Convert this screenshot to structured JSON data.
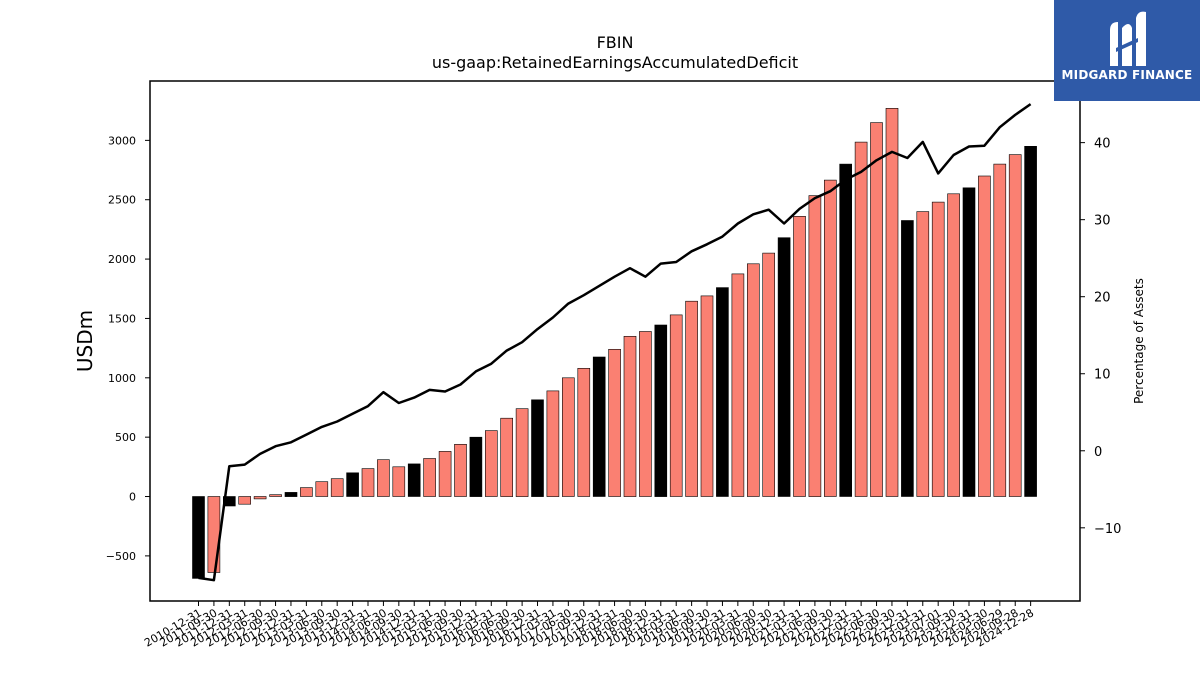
{
  "brand": {
    "name": "MIDGARD FINANCE",
    "bg_color": "#2f5aa8",
    "icon": "midgard-m-icon"
  },
  "chart_data": {
    "type": "bar",
    "title": "FBIN",
    "subtitle": "us-gaap:RetainedEarningsAccumulatedDeficit",
    "ylabel": "USDm",
    "y2label": "Percentage of Assets",
    "ylim": [
      -880,
      3500
    ],
    "y2lim": [
      -19.5,
      48
    ],
    "yticks": [
      -500,
      0,
      500,
      1000,
      1500,
      2000,
      2500,
      3000
    ],
    "y2ticks": [
      -10,
      0,
      10,
      20,
      30,
      40
    ],
    "colors": {
      "annual": "#000000",
      "quarterly": "#fa8072",
      "line": "#000000"
    },
    "legend": "none",
    "grid": false,
    "categories": [
      "2010-12-31",
      "2011-09-30",
      "2011-12-31",
      "2012-03-31",
      "2012-06-30",
      "2012-09-30",
      "2012-12-31",
      "2013-03-31",
      "2013-06-30",
      "2013-09-30",
      "2013-12-31",
      "2014-03-31",
      "2014-06-30",
      "2014-09-30",
      "2014-12-31",
      "2015-03-31",
      "2015-06-30",
      "2015-09-30",
      "2015-12-31",
      "2016-03-31",
      "2016-06-30",
      "2016-09-30",
      "2016-12-31",
      "2017-03-31",
      "2017-06-30",
      "2017-09-30",
      "2017-12-31",
      "2018-03-31",
      "2018-06-30",
      "2018-09-30",
      "2018-12-31",
      "2019-03-31",
      "2019-06-30",
      "2019-09-30",
      "2019-12-31",
      "2020-03-31",
      "2020-06-30",
      "2020-09-30",
      "2020-12-31",
      "2021-03-31",
      "2021-06-30",
      "2021-09-30",
      "2021-12-31",
      "2022-03-31",
      "2022-06-30",
      "2022-09-30",
      "2022-12-31",
      "2023-03-31",
      "2023-07-01",
      "2023-09-30",
      "2023-12-31",
      "2024-03-30",
      "2024-06-29",
      "2024-09-28",
      "2024-12-28"
    ],
    "tick_labels": [
      "2010-12-31",
      "2011-09-30",
      "2011-12-31",
      "2012-03-31",
      "2012-06-30",
      "2012-09-30",
      "2012-12-31",
      "2013-03-31",
      "2013-06-30",
      "2013-09-30",
      "2013-12-31",
      "2014-03-31",
      "2014-06-30",
      "2014-09-30",
      "2014-12-31",
      "2015-03-31",
      "2015-06-30",
      "2015-09-30",
      "2015-12-31",
      "2016-03-31",
      "2016-06-30",
      "2016-09-30",
      "2016-12-31",
      "2017-03-31",
      "2017-06-30",
      "2017-09-30",
      "2017-12-31",
      "2018-03-31",
      "2018-06-30",
      "2018-09-30",
      "2018-12-31",
      "2019-03-31",
      "2019-06-30",
      "2019-09-30",
      "2019-12-31",
      "2020-03-31",
      "2020-06-30",
      "2020-09-30",
      "2020-12-31",
      "2021-03-31",
      "2021-06-30",
      "2021-09-30",
      "2021-12-31",
      "2022-03-31",
      "2022-06-30",
      "2022-09-30",
      "2022-12-31",
      "2023-03-31",
      "2023-07-01",
      "2023-09-30",
      "2023-12-31",
      "2024-03-30",
      "2024-06-29",
      "2024-09-28",
      "2024-12-28"
    ],
    "series": [
      {
        "kind": "bar",
        "values": [
          -690,
          -640,
          -80,
          -65,
          -20,
          15,
          35,
          75,
          125,
          150,
          200,
          235,
          310,
          250,
          275,
          320,
          380,
          440,
          500,
          555,
          660,
          740,
          815,
          890,
          1000,
          1080,
          1175,
          1240,
          1350,
          1390,
          1445,
          1530,
          1645,
          1690,
          1760,
          1875,
          1960,
          2050,
          2180,
          2360,
          2535,
          2665,
          2800,
          2985,
          3150,
          3270,
          2325,
          2400,
          2480,
          2550,
          2600,
          2700,
          2800,
          2880,
          2950
        ],
        "period_type": [
          "annual",
          "quarterly",
          "annual",
          "quarterly",
          "quarterly",
          "quarterly",
          "annual",
          "quarterly",
          "quarterly",
          "quarterly",
          "annual",
          "quarterly",
          "quarterly",
          "quarterly",
          "annual",
          "quarterly",
          "quarterly",
          "quarterly",
          "annual",
          "quarterly",
          "quarterly",
          "quarterly",
          "annual",
          "quarterly",
          "quarterly",
          "quarterly",
          "annual",
          "quarterly",
          "quarterly",
          "quarterly",
          "annual",
          "quarterly",
          "quarterly",
          "quarterly",
          "annual",
          "quarterly",
          "quarterly",
          "quarterly",
          "annual",
          "quarterly",
          "quarterly",
          "quarterly",
          "annual",
          "quarterly",
          "quarterly",
          "quarterly",
          "annual",
          "quarterly",
          "quarterly",
          "quarterly",
          "annual",
          "quarterly",
          "quarterly",
          "quarterly",
          "annual"
        ]
      },
      {
        "kind": "line",
        "axis": "right",
        "values": [
          -16.5,
          -16.8,
          -2.0,
          -1.8,
          -0.4,
          0.6,
          1.1,
          2.1,
          3.1,
          3.8,
          4.8,
          5.8,
          7.6,
          6.2,
          6.9,
          7.9,
          7.7,
          8.6,
          10.3,
          11.3,
          13.0,
          14.1,
          15.8,
          17.3,
          19.1,
          20.2,
          21.4,
          22.6,
          23.7,
          22.6,
          24.3,
          24.5,
          25.9,
          26.8,
          27.8,
          29.5,
          30.7,
          31.3,
          29.5,
          31.4,
          32.8,
          33.7,
          35.2,
          36.2,
          37.7,
          38.8,
          38.0,
          40.1,
          36.0,
          38.4,
          39.5,
          39.6,
          42.0,
          43.6,
          45.0
        ]
      }
    ]
  }
}
